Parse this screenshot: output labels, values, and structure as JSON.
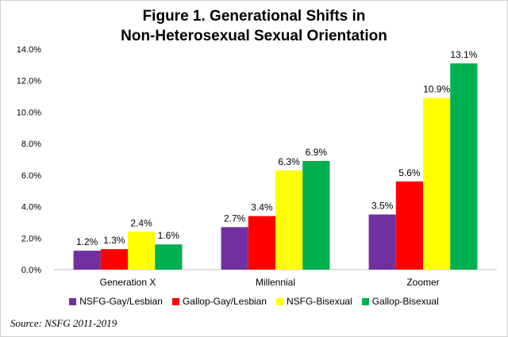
{
  "chart_data": {
    "type": "bar",
    "title_line1": "Figure 1. Generational Shifts in",
    "title_line2": "Non-Heterosexual Sexual Orientation",
    "categories": [
      "Generation X",
      "Millennial",
      "Zoomer"
    ],
    "series": [
      {
        "name": "NSFG-Gay/Lesbian",
        "color": "#7030A0",
        "values": [
          1.2,
          2.7,
          3.5
        ],
        "labels": [
          "1.2%",
          "2.7%",
          "3.5%"
        ]
      },
      {
        "name": "Gallop-Gay/Lesbian",
        "color": "#FF0000",
        "values": [
          1.3,
          3.4,
          5.6
        ],
        "labels": [
          "1.3%",
          "3.4%",
          "5.6%"
        ]
      },
      {
        "name": "NSFG-Bisexual",
        "color": "#FFFF00",
        "values": [
          2.4,
          6.3,
          10.9
        ],
        "labels": [
          "2.4%",
          "6.3%",
          "10.9%"
        ]
      },
      {
        "name": "Gallop-Bisexual",
        "color": "#00B050",
        "values": [
          1.6,
          6.9,
          13.1
        ],
        "labels": [
          "1.6%",
          "6.9%",
          "13.1%"
        ]
      }
    ],
    "y_ticks": [
      "0.0%",
      "2.0%",
      "4.0%",
      "6.0%",
      "8.0%",
      "10.0%",
      "12.0%",
      "14.0%"
    ],
    "ylim": [
      0,
      14
    ],
    "xlabel": "",
    "ylabel": "",
    "legend_position": "bottom",
    "grid": false
  },
  "source": "Source: NSFG 2011-2019"
}
